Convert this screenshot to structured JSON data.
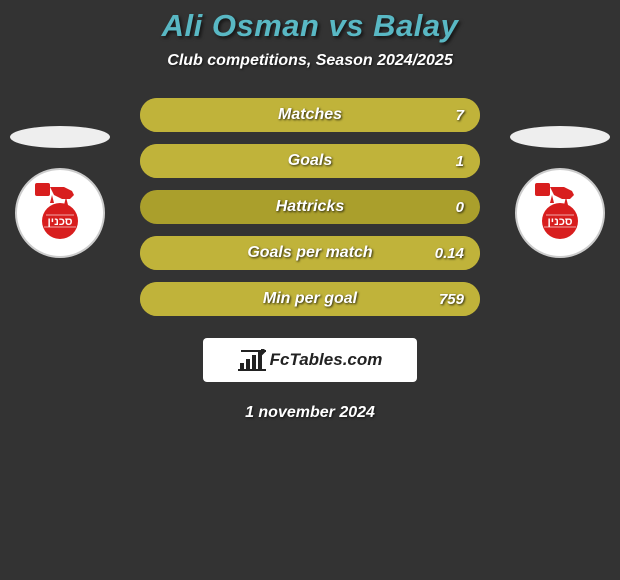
{
  "title": "Ali Osman vs Balay",
  "subtitle": "Club competitions, Season 2024/2025",
  "date": "1 november 2024",
  "footer_brand": "FcTables.com",
  "colors": {
    "background": "#333333",
    "title": "#59b8c4",
    "text": "#ffffff",
    "bar_bg": "#aa9f2c",
    "bar_fill": "#c0b33a",
    "logo_red": "#d81e1e",
    "footer_bg": "#ffffff"
  },
  "club_logo_text": "סכנין",
  "stats": [
    {
      "label": "Matches",
      "value": "7",
      "fill_pct": 100
    },
    {
      "label": "Goals",
      "value": "1",
      "fill_pct": 100
    },
    {
      "label": "Hattricks",
      "value": "0",
      "fill_pct": 0
    },
    {
      "label": "Goals per match",
      "value": "0.14",
      "fill_pct": 100
    },
    {
      "label": "Min per goal",
      "value": "759",
      "fill_pct": 100
    }
  ]
}
